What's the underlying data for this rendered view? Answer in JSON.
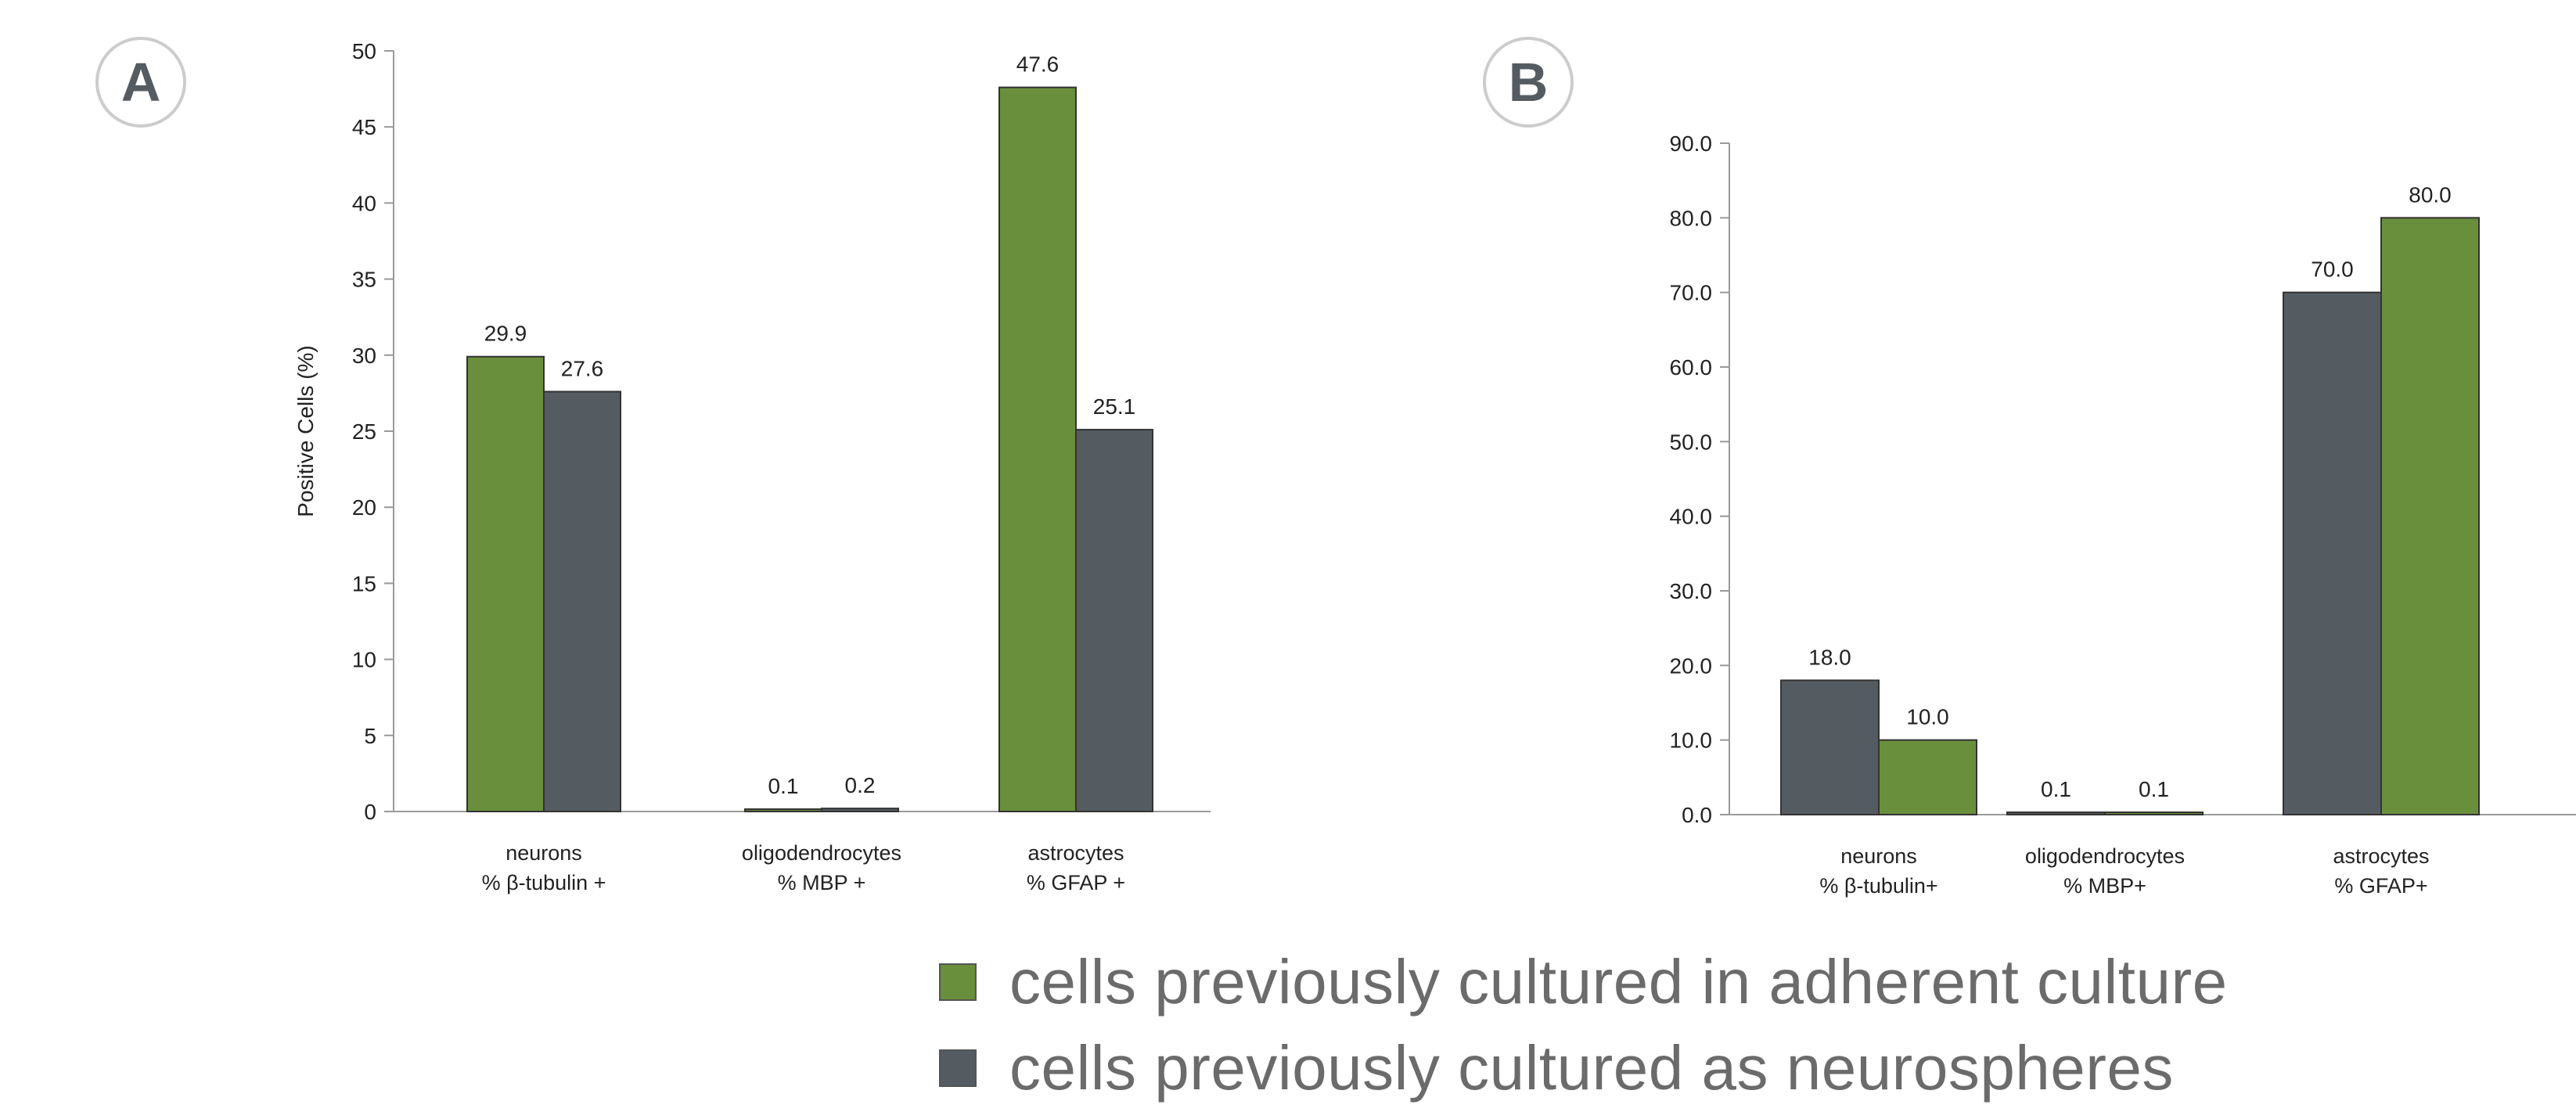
{
  "panels": [
    {
      "letter": "A",
      "chart_data": {
        "type": "bar",
        "ylabel": "Positive Cells (%)",
        "ylim": [
          0,
          50
        ],
        "yticks": [
          "0",
          "5",
          "10",
          "15",
          "20",
          "25",
          "30",
          "35",
          "40",
          "45",
          "50"
        ],
        "categories": [
          [
            "neurons",
            "% β-tubulin +"
          ],
          [
            "oligodendrocytes",
            "% MBP +"
          ],
          [
            "astrocytes",
            "% GFAP +"
          ]
        ],
        "series": [
          {
            "key": "adherent",
            "values": [
              29.9,
              0.1,
              47.6
            ],
            "labels": [
              "29.9",
              "0.1",
              "47.6"
            ]
          },
          {
            "key": "neurospheres",
            "values": [
              27.6,
              0.2,
              25.1
            ],
            "labels": [
              "27.6",
              "0.2",
              "25.1"
            ]
          }
        ],
        "grid": false
      }
    },
    {
      "letter": "B",
      "chart_data": {
        "type": "bar",
        "ylabel": "",
        "ylim": [
          0,
          90
        ],
        "yticks": [
          "0.0",
          "10.0",
          "20.0",
          "30.0",
          "40.0",
          "50.0",
          "60.0",
          "70.0",
          "80.0",
          "90.0"
        ],
        "categories": [
          [
            "neurons",
            "% β-tubulin+"
          ],
          [
            "oligodendrocytes",
            "% MBP+"
          ],
          [
            "astrocytes",
            "% GFAP+"
          ]
        ],
        "series": [
          {
            "key": "neurospheres",
            "values": [
              18.0,
              0.1,
              70.0
            ],
            "labels": [
              "18.0",
              "0.1",
              "70.0"
            ]
          },
          {
            "key": "adherent",
            "values": [
              10.0,
              0.1,
              80.0
            ],
            "labels": [
              "10.0",
              "0.1",
              "80.0"
            ]
          }
        ],
        "grid": false
      }
    }
  ],
  "colors": {
    "adherent": "#6a8f3c",
    "neurospheres": "#555c61",
    "axis": "#999999",
    "text": "#222222",
    "letter": "#555c61",
    "letter_ring": "#cccccc"
  },
  "legend": {
    "items": [
      {
        "key": "adherent",
        "label": "cells previously cultured in adherent culture"
      },
      {
        "key": "neurospheres",
        "label": "cells previously cultured as neurospheres"
      }
    ]
  }
}
